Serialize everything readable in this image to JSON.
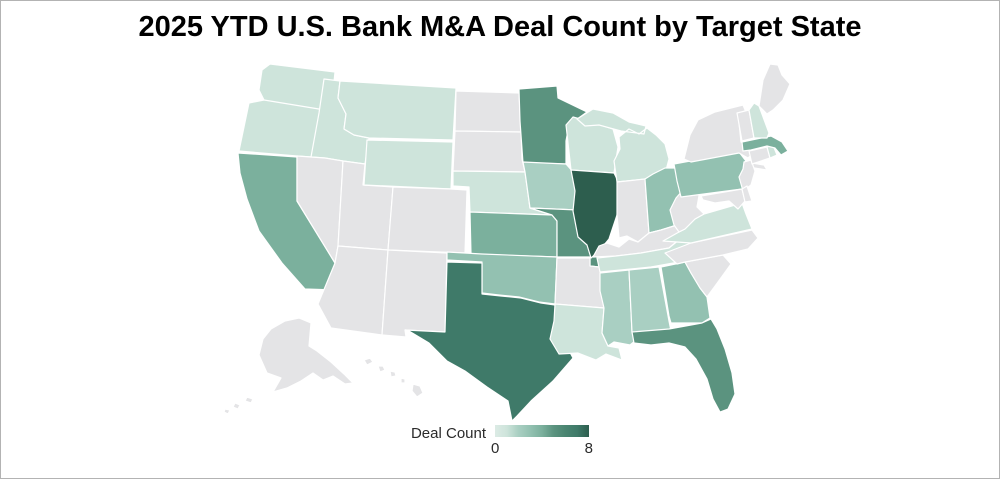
{
  "title": "2025 YTD U.S. Bank M&A Deal Count by Target State",
  "legend": {
    "label": "Deal Count",
    "min": "0",
    "max": "8"
  },
  "colors": {
    "no_data": "#e4e4e6",
    "state_border": "#ffffff",
    "frame_border": "#b3b3b3",
    "ramp": [
      "#dcebe5",
      "#cee4db",
      "#a9cfc2",
      "#93c1b1",
      "#7bb09d",
      "#5b937f",
      "#4a8571",
      "#3f7a69",
      "#2d5e4e"
    ]
  },
  "chart_data": {
    "type": "choropleth",
    "region": "United States by state",
    "title": "2025 YTD U.S. Bank M&A Deal Count by Target State",
    "value_label": "Deal Count",
    "scale": {
      "min": 0,
      "max": 8,
      "no_data_color": "#e4e4e6"
    },
    "legend_position": "bottom-center",
    "states": [
      {
        "abbr": "WA",
        "name": "Washington",
        "value": 1
      },
      {
        "abbr": "OR",
        "name": "Oregon",
        "value": 1
      },
      {
        "abbr": "CA",
        "name": "California",
        "value": 4
      },
      {
        "abbr": "ID",
        "name": "Idaho",
        "value": 1
      },
      {
        "abbr": "NV",
        "name": "Nevada",
        "value": null
      },
      {
        "abbr": "UT",
        "name": "Utah",
        "value": null
      },
      {
        "abbr": "AZ",
        "name": "Arizona",
        "value": null
      },
      {
        "abbr": "MT",
        "name": "Montana",
        "value": 1
      },
      {
        "abbr": "WY",
        "name": "Wyoming",
        "value": 1
      },
      {
        "abbr": "CO",
        "name": "Colorado",
        "value": null
      },
      {
        "abbr": "NM",
        "name": "New Mexico",
        "value": null
      },
      {
        "abbr": "ND",
        "name": "North Dakota",
        "value": null
      },
      {
        "abbr": "SD",
        "name": "South Dakota",
        "value": null
      },
      {
        "abbr": "NE",
        "name": "Nebraska",
        "value": 1
      },
      {
        "abbr": "KS",
        "name": "Kansas",
        "value": 4
      },
      {
        "abbr": "OK",
        "name": "Oklahoma",
        "value": 3
      },
      {
        "abbr": "TX",
        "name": "Texas",
        "value": 7
      },
      {
        "abbr": "MN",
        "name": "Minnesota",
        "value": 5
      },
      {
        "abbr": "IA",
        "name": "Iowa",
        "value": 2
      },
      {
        "abbr": "MO",
        "name": "Missouri",
        "value": 5
      },
      {
        "abbr": "AR",
        "name": "Arkansas",
        "value": null
      },
      {
        "abbr": "LA",
        "name": "Louisiana",
        "value": 1
      },
      {
        "abbr": "WI",
        "name": "Wisconsin",
        "value": 1
      },
      {
        "abbr": "IL",
        "name": "Illinois",
        "value": 8
      },
      {
        "abbr": "MI",
        "name": "Michigan",
        "value": 1
      },
      {
        "abbr": "IN",
        "name": "Indiana",
        "value": null
      },
      {
        "abbr": "OH",
        "name": "Ohio",
        "value": 3
      },
      {
        "abbr": "KY",
        "name": "Kentucky",
        "value": null
      },
      {
        "abbr": "TN",
        "name": "Tennessee",
        "value": 1
      },
      {
        "abbr": "MS",
        "name": "Mississippi",
        "value": 2
      },
      {
        "abbr": "AL",
        "name": "Alabama",
        "value": 2
      },
      {
        "abbr": "GA",
        "name": "Georgia",
        "value": 3
      },
      {
        "abbr": "FL",
        "name": "Florida",
        "value": 5
      },
      {
        "abbr": "SC",
        "name": "South Carolina",
        "value": null
      },
      {
        "abbr": "NC",
        "name": "North Carolina",
        "value": null
      },
      {
        "abbr": "VA",
        "name": "Virginia",
        "value": 1
      },
      {
        "abbr": "WV",
        "name": "West Virginia",
        "value": null
      },
      {
        "abbr": "PA",
        "name": "Pennsylvania",
        "value": 3
      },
      {
        "abbr": "NY",
        "name": "New York",
        "value": null
      },
      {
        "abbr": "NJ",
        "name": "New Jersey",
        "value": null
      },
      {
        "abbr": "MD",
        "name": "Maryland",
        "value": null
      },
      {
        "abbr": "DE",
        "name": "Delaware",
        "value": null
      },
      {
        "abbr": "CT",
        "name": "Connecticut",
        "value": null
      },
      {
        "abbr": "RI",
        "name": "Rhode Island",
        "value": 1
      },
      {
        "abbr": "MA",
        "name": "Massachusetts",
        "value": 4
      },
      {
        "abbr": "VT",
        "name": "Vermont",
        "value": null
      },
      {
        "abbr": "NH",
        "name": "New Hampshire",
        "value": 1
      },
      {
        "abbr": "ME",
        "name": "Maine",
        "value": null
      },
      {
        "abbr": "AK",
        "name": "Alaska",
        "value": null
      },
      {
        "abbr": "HI",
        "name": "Hawaii",
        "value": null
      }
    ]
  }
}
